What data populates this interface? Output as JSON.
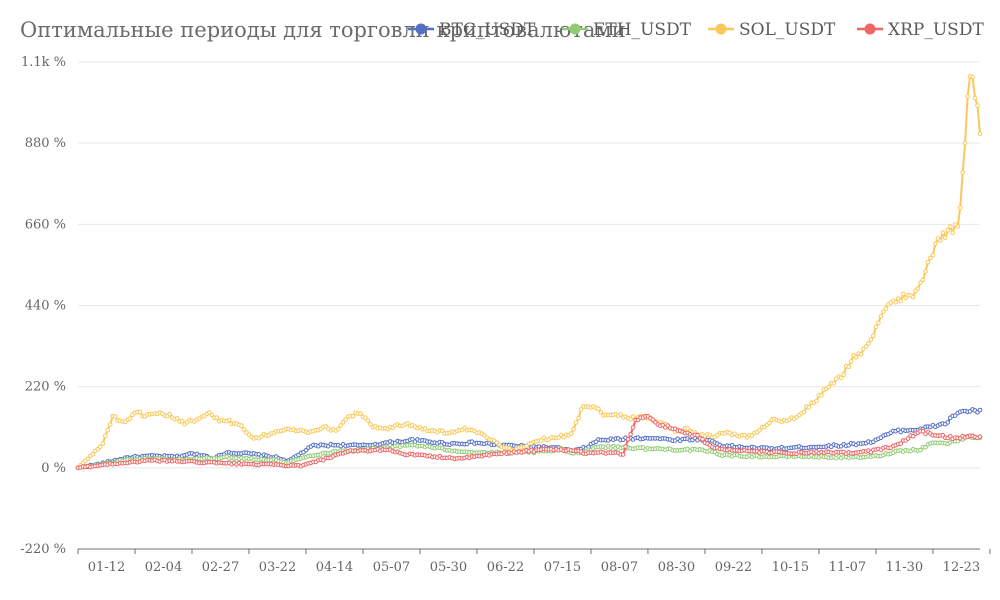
{
  "chart_data": {
    "type": "line",
    "title": "Оптимальные периоды для торговли криптовалютами",
    "xlabel": "",
    "ylabel": "",
    "y_unit": "%",
    "ylim": [
      -220,
      1100
    ],
    "yticks": [
      -220,
      0,
      220,
      440,
      660,
      880,
      1100
    ],
    "ytick_labels": [
      "-220 %",
      "0 %",
      "220 %",
      "440 %",
      "660 %",
      "880 %",
      "1.1k %"
    ],
    "xticks": [
      "01-12",
      "02-04",
      "02-27",
      "03-22",
      "04-14",
      "05-07",
      "05-30",
      "06-22",
      "07-15",
      "08-07",
      "08-30",
      "09-22",
      "10-15",
      "11-07",
      "11-30",
      "12-23"
    ],
    "grid": true,
    "legend_position": "top-right",
    "x_start_label": "01-01",
    "n_points": 365,
    "series": [
      {
        "name": "BTC_USDT",
        "color": "#5470c6",
        "keypoints": [
          [
            0,
            0
          ],
          [
            10,
            12
          ],
          [
            20,
            28
          ],
          [
            30,
            32
          ],
          [
            40,
            30
          ],
          [
            45,
            38
          ],
          [
            50,
            35
          ],
          [
            55,
            25
          ],
          [
            60,
            42
          ],
          [
            70,
            38
          ],
          [
            80,
            28
          ],
          [
            85,
            18
          ],
          [
            90,
            40
          ],
          [
            95,
            60
          ],
          [
            105,
            62
          ],
          [
            115,
            60
          ],
          [
            125,
            68
          ],
          [
            135,
            75
          ],
          [
            140,
            72
          ],
          [
            150,
            65
          ],
          [
            160,
            68
          ],
          [
            170,
            62
          ],
          [
            180,
            58
          ],
          [
            190,
            55
          ],
          [
            195,
            52
          ],
          [
            200,
            45
          ],
          [
            205,
            55
          ],
          [
            210,
            75
          ],
          [
            220,
            78
          ],
          [
            230,
            82
          ],
          [
            240,
            76
          ],
          [
            250,
            78
          ],
          [
            255,
            75
          ],
          [
            260,
            60
          ],
          [
            270,
            55
          ],
          [
            280,
            52
          ],
          [
            290,
            55
          ],
          [
            300,
            58
          ],
          [
            310,
            62
          ],
          [
            320,
            70
          ],
          [
            325,
            85
          ],
          [
            330,
            100
          ],
          [
            340,
            105
          ],
          [
            350,
            120
          ],
          [
            355,
            150
          ],
          [
            360,
            155
          ],
          [
            364,
            153
          ]
        ]
      },
      {
        "name": "ETH_USDT",
        "color": "#91cc75",
        "keypoints": [
          [
            0,
            0
          ],
          [
            10,
            10
          ],
          [
            20,
            22
          ],
          [
            30,
            25
          ],
          [
            40,
            22
          ],
          [
            50,
            25
          ],
          [
            60,
            28
          ],
          [
            70,
            25
          ],
          [
            80,
            20
          ],
          [
            85,
            15
          ],
          [
            90,
            25
          ],
          [
            95,
            35
          ],
          [
            105,
            45
          ],
          [
            115,
            48
          ],
          [
            125,
            55
          ],
          [
            135,
            62
          ],
          [
            140,
            58
          ],
          [
            150,
            48
          ],
          [
            160,
            42
          ],
          [
            170,
            40
          ],
          [
            180,
            42
          ],
          [
            190,
            45
          ],
          [
            195,
            50
          ],
          [
            200,
            40
          ],
          [
            205,
            45
          ],
          [
            210,
            58
          ],
          [
            220,
            55
          ],
          [
            230,
            52
          ],
          [
            240,
            50
          ],
          [
            250,
            48
          ],
          [
            255,
            45
          ],
          [
            260,
            35
          ],
          [
            270,
            32
          ],
          [
            280,
            30
          ],
          [
            290,
            32
          ],
          [
            300,
            30
          ],
          [
            310,
            28
          ],
          [
            320,
            30
          ],
          [
            325,
            35
          ],
          [
            330,
            45
          ],
          [
            340,
            50
          ],
          [
            345,
            70
          ],
          [
            350,
            65
          ],
          [
            355,
            75
          ],
          [
            360,
            85
          ],
          [
            364,
            82
          ]
        ]
      },
      {
        "name": "SOL_USDT",
        "color": "#fac858",
        "keypoints": [
          [
            0,
            0
          ],
          [
            5,
            30
          ],
          [
            10,
            60
          ],
          [
            15,
            140
          ],
          [
            20,
            120
          ],
          [
            25,
            150
          ],
          [
            30,
            140
          ],
          [
            35,
            145
          ],
          [
            40,
            140
          ],
          [
            45,
            120
          ],
          [
            50,
            130
          ],
          [
            55,
            150
          ],
          [
            60,
            130
          ],
          [
            65,
            125
          ],
          [
            70,
            110
          ],
          [
            75,
            80
          ],
          [
            80,
            90
          ],
          [
            90,
            105
          ],
          [
            100,
            95
          ],
          [
            105,
            110
          ],
          [
            110,
            100
          ],
          [
            115,
            140
          ],
          [
            120,
            150
          ],
          [
            125,
            115
          ],
          [
            130,
            105
          ],
          [
            140,
            120
          ],
          [
            150,
            100
          ],
          [
            160,
            95
          ],
          [
            165,
            105
          ],
          [
            170,
            95
          ],
          [
            175,
            80
          ],
          [
            180,
            60
          ],
          [
            185,
            50
          ],
          [
            190,
            55
          ],
          [
            195,
            75
          ],
          [
            200,
            80
          ],
          [
            210,
            90
          ],
          [
            215,
            170
          ],
          [
            220,
            165
          ],
          [
            225,
            140
          ],
          [
            230,
            145
          ],
          [
            235,
            135
          ],
          [
            240,
            140
          ],
          [
            245,
            130
          ],
          [
            250,
            115
          ],
          [
            255,
            100
          ],
          [
            260,
            105
          ],
          [
            265,
            90
          ],
          [
            270,
            85
          ],
          [
            275,
            95
          ],
          [
            280,
            90
          ],
          [
            285,
            85
          ],
          [
            290,
            100
          ],
          [
            295,
            130
          ],
          [
            300,
            125
          ],
          [
            305,
            135
          ],
          [
            310,
            160
          ],
          [
            315,
            190
          ],
          [
            320,
            220
          ],
          [
            325,
            250
          ],
          [
            330,
            300
          ],
          [
            335,
            320
          ],
          [
            340,
            380
          ],
          [
            345,
            440
          ],
          [
            350,
            460
          ],
          [
            355,
            470
          ],
          [
            360,
            520
          ],
          [
            365,
            600
          ],
          [
            370,
            640
          ],
          [
            375,
            650
          ],
          [
            380,
            1100
          ],
          [
            384,
            920
          ]
        ]
      },
      {
        "name": "XRP_USDT",
        "color": "#ee6666",
        "keypoints": [
          [
            0,
            0
          ],
          [
            10,
            8
          ],
          [
            20,
            15
          ],
          [
            30,
            20
          ],
          [
            40,
            18
          ],
          [
            50,
            15
          ],
          [
            60,
            12
          ],
          [
            70,
            10
          ],
          [
            80,
            8
          ],
          [
            90,
            5
          ],
          [
            95,
            15
          ],
          [
            100,
            25
          ],
          [
            110,
            45
          ],
          [
            120,
            48
          ],
          [
            125,
            50
          ],
          [
            130,
            40
          ],
          [
            135,
            35
          ],
          [
            145,
            30
          ],
          [
            155,
            25
          ],
          [
            160,
            30
          ],
          [
            170,
            38
          ],
          [
            180,
            45
          ],
          [
            190,
            50
          ],
          [
            200,
            48
          ],
          [
            205,
            40
          ],
          [
            210,
            42
          ],
          [
            220,
            38
          ],
          [
            225,
            130
          ],
          [
            230,
            140
          ],
          [
            235,
            115
          ],
          [
            240,
            108
          ],
          [
            245,
            95
          ],
          [
            250,
            85
          ],
          [
            255,
            60
          ],
          [
            260,
            50
          ],
          [
            270,
            45
          ],
          [
            280,
            42
          ],
          [
            290,
            40
          ],
          [
            300,
            42
          ],
          [
            310,
            40
          ],
          [
            320,
            45
          ],
          [
            330,
            60
          ],
          [
            335,
            80
          ],
          [
            340,
            100
          ],
          [
            345,
            90
          ],
          [
            350,
            85
          ],
          [
            355,
            80
          ],
          [
            360,
            88
          ],
          [
            364,
            82
          ]
        ]
      }
    ]
  }
}
